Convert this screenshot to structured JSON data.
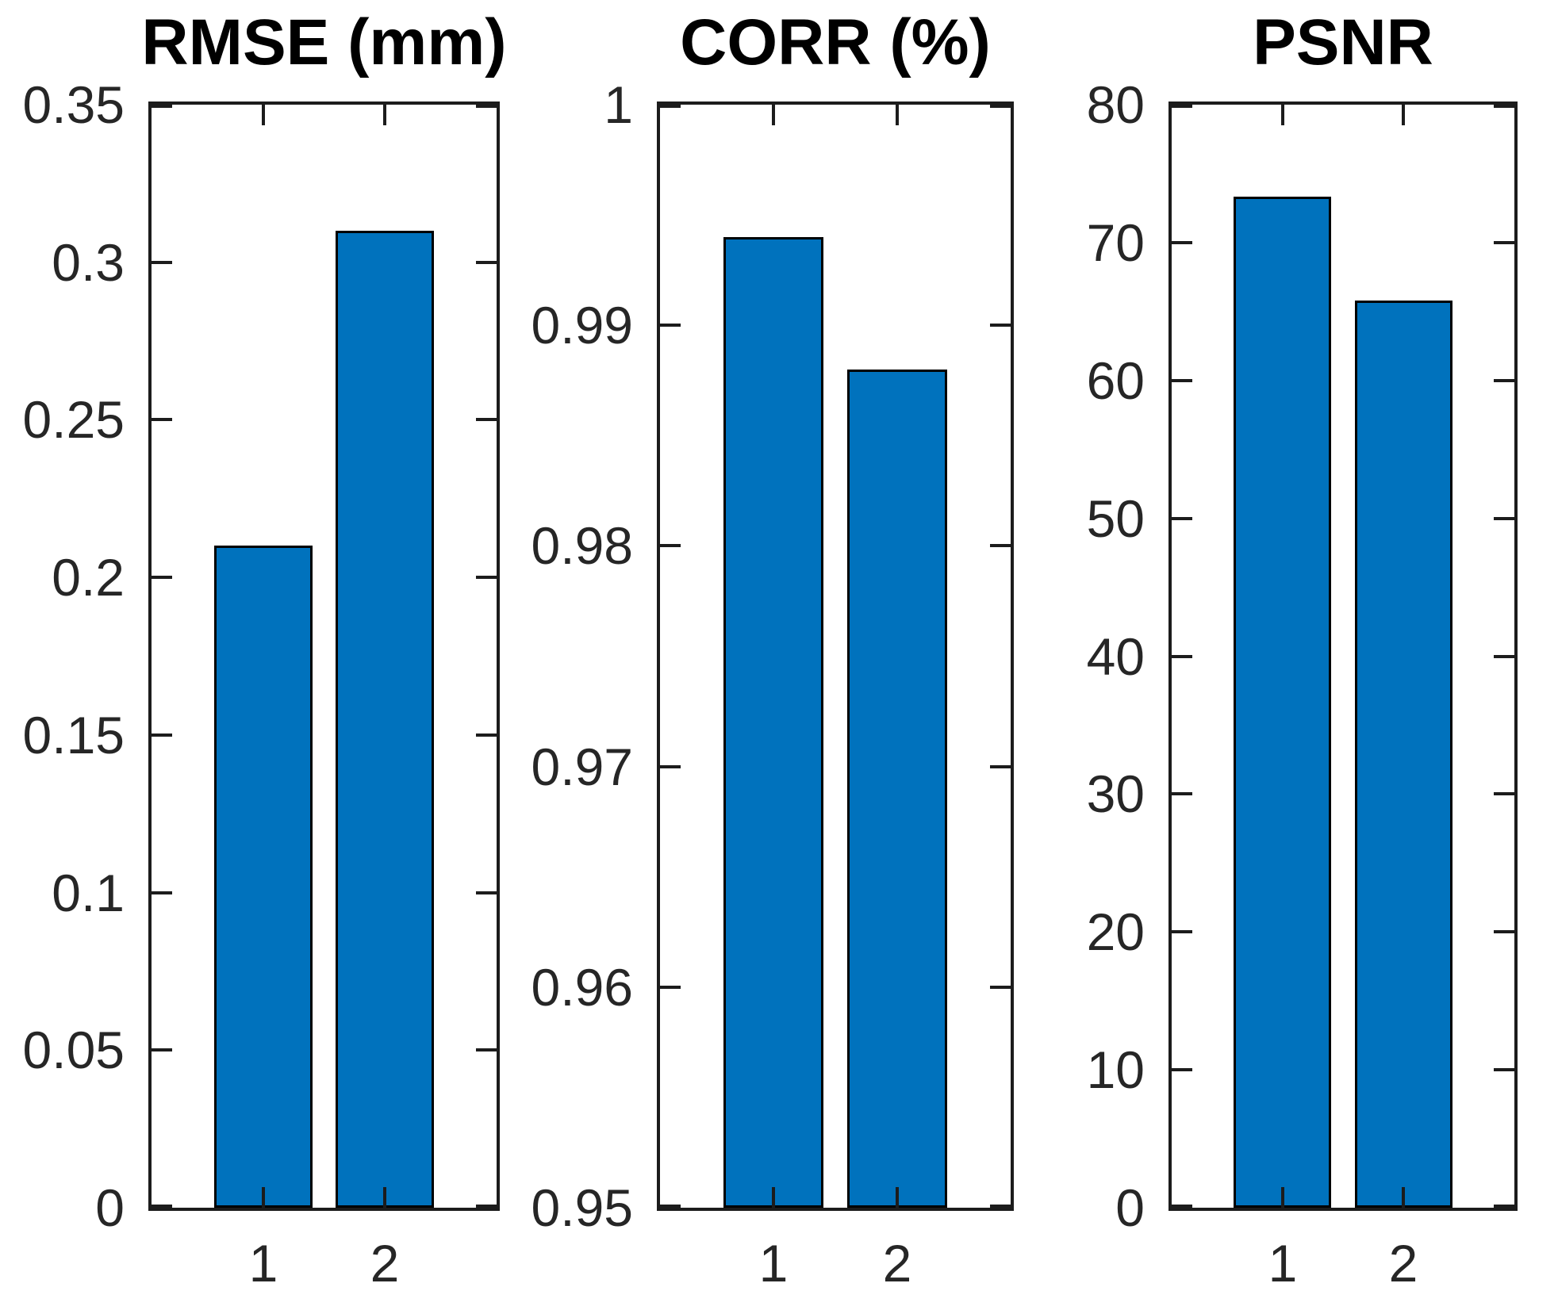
{
  "figure": {
    "background": "#ffffff",
    "bar_fill_color": "#0072BD",
    "bar_edge_color": "#000000",
    "axis_color": "#262626",
    "title_color": "#000000"
  },
  "chart_data": [
    {
      "type": "bar",
      "title": "RMSE (mm)",
      "categories": [
        "1",
        "2"
      ],
      "values": [
        0.21,
        0.31
      ],
      "xlabel": "",
      "ylabel": "",
      "ylim": [
        0,
        0.35
      ],
      "yticks": [
        0,
        0.05,
        0.1,
        0.15,
        0.2,
        0.25,
        0.3,
        0.35
      ],
      "ytick_labels": [
        "0",
        "0.05",
        "0.1",
        "0.15",
        "0.2",
        "0.25",
        "0.3",
        "0.35"
      ],
      "grid": false,
      "legend": null
    },
    {
      "type": "bar",
      "title": "CORR (%)",
      "categories": [
        "1",
        "2"
      ],
      "values": [
        0.994,
        0.988
      ],
      "xlabel": "",
      "ylabel": "",
      "ylim": [
        0.95,
        1
      ],
      "yticks": [
        0.95,
        0.96,
        0.97,
        0.98,
        0.99,
        1
      ],
      "ytick_labels": [
        "0.95",
        "0.96",
        "0.97",
        "0.98",
        "0.99",
        "1"
      ],
      "grid": false,
      "legend": null
    },
    {
      "type": "bar",
      "title": "PSNR",
      "categories": [
        "1",
        "2"
      ],
      "values": [
        73.3,
        65.8
      ],
      "xlabel": "",
      "ylabel": "",
      "ylim": [
        0,
        80
      ],
      "yticks": [
        0,
        10,
        20,
        30,
        40,
        50,
        60,
        70,
        80
      ],
      "ytick_labels": [
        "0",
        "10",
        "20",
        "30",
        "40",
        "50",
        "60",
        "70",
        "80"
      ],
      "grid": false,
      "legend": null
    }
  ]
}
